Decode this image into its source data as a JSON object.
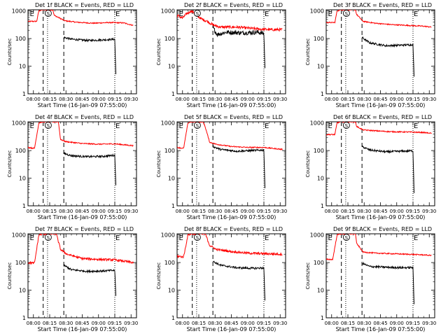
{
  "chart_data": {
    "type": "line",
    "layout": "3x3 grid",
    "common": {
      "xlabel": "Start Time (16-Jan-09 07:55:00)",
      "ylabel": "Counts/sec",
      "ytick_labels": [
        "1",
        "10",
        "100",
        "1000"
      ],
      "yscale": "log",
      "ylim": [
        1,
        1100
      ],
      "xtick_labels": [
        "08:00",
        "08:15",
        "08:30",
        "08:45",
        "09:00",
        "09:15",
        "09:30"
      ],
      "xtick_minutes": [
        5,
        20,
        35,
        50,
        65,
        80,
        95
      ],
      "xlim_minutes": [
        0,
        100
      ],
      "marker_E": "E",
      "marker_S": "S",
      "series_colors": {
        "events": "#000000",
        "lld": "#ff0000"
      }
    },
    "panels": [
      {
        "title": "Det 1f BLACK = Events, RED = LLD",
        "dashed_lines": [
          14,
          33
        ],
        "dotted_lines": [
          18,
          80
        ],
        "s_marker_at": 18,
        "e_markers": [
          1,
          80
        ],
        "lld": [
          [
            0,
            420
          ],
          [
            8,
            420
          ],
          [
            10,
            1000
          ],
          [
            13,
            1100
          ],
          [
            23,
            1100
          ],
          [
            24,
            700
          ],
          [
            34,
            440
          ],
          [
            45,
            390
          ],
          [
            60,
            360
          ],
          [
            75,
            380
          ],
          [
            88,
            370
          ],
          [
            97,
            300
          ]
        ],
        "events": [
          [
            33,
            110
          ],
          [
            40,
            95
          ],
          [
            55,
            85
          ],
          [
            70,
            90
          ],
          [
            80,
            95
          ],
          [
            81,
            5
          ]
        ]
      },
      {
        "title": "Det 2f BLACK = Events, RED = LLD",
        "dashed_lines": [
          14,
          33
        ],
        "dotted_lines": [
          18,
          80
        ],
        "s_marker_at": 18,
        "e_markers": [
          1,
          80
        ],
        "lld": [
          [
            0,
            700
          ],
          [
            5,
            550
          ],
          [
            9,
            800
          ],
          [
            13,
            1000
          ],
          [
            17,
            800
          ],
          [
            20,
            600
          ],
          [
            23,
            500
          ],
          [
            28,
            420
          ],
          [
            33,
            310
          ],
          [
            40,
            260
          ],
          [
            55,
            260
          ],
          [
            70,
            230
          ],
          [
            85,
            210
          ],
          [
            97,
            210
          ]
        ],
        "events": [
          [
            33,
            250
          ],
          [
            37,
            140
          ],
          [
            45,
            170
          ],
          [
            60,
            160
          ],
          [
            75,
            170
          ],
          [
            80,
            150
          ],
          [
            81,
            8
          ]
        ]
      },
      {
        "title": "Det 3f BLACK = Events, RED = LLD",
        "dashed_lines": [
          14,
          33
        ],
        "dotted_lines": [
          18,
          80
        ],
        "s_marker_at": 18,
        "e_markers": [
          1,
          80
        ],
        "lld": [
          [
            0,
            380
          ],
          [
            8,
            380
          ],
          [
            10,
            1000
          ],
          [
            13,
            1100
          ],
          [
            27,
            1100
          ],
          [
            28,
            750
          ],
          [
            34,
            420
          ],
          [
            45,
            360
          ],
          [
            60,
            320
          ],
          [
            75,
            300
          ],
          [
            90,
            280
          ],
          [
            97,
            260
          ]
        ],
        "events": [
          [
            33,
            110
          ],
          [
            40,
            70
          ],
          [
            55,
            55
          ],
          [
            70,
            58
          ],
          [
            80,
            60
          ],
          [
            81,
            4
          ]
        ]
      },
      {
        "title": "Det 4f BLACK = Events, RED = LLD",
        "dashed_lines": [
          14,
          33
        ],
        "dotted_lines": [
          18,
          80
        ],
        "s_marker_at": 18,
        "e_markers": [
          1,
          80
        ],
        "lld": [
          [
            0,
            130
          ],
          [
            6,
            120
          ],
          [
            10,
            1000
          ],
          [
            13,
            1100
          ],
          [
            28,
            1100
          ],
          [
            30,
            250
          ],
          [
            35,
            210
          ],
          [
            50,
            180
          ],
          [
            65,
            170
          ],
          [
            80,
            175
          ],
          [
            97,
            150
          ]
        ],
        "events": [
          [
            33,
            80
          ],
          [
            40,
            65
          ],
          [
            55,
            60
          ],
          [
            70,
            62
          ],
          [
            80,
            68
          ],
          [
            81,
            6
          ]
        ]
      },
      {
        "title": "Det 5f BLACK = Events, RED = LLD",
        "dashed_lines": [
          14,
          33
        ],
        "dotted_lines": [
          18,
          80
        ],
        "s_marker_at": 18,
        "e_markers": [
          1,
          80
        ],
        "lld": [
          [
            0,
            130
          ],
          [
            6,
            120
          ],
          [
            10,
            1000
          ],
          [
            13,
            1100
          ],
          [
            24,
            1100
          ],
          [
            26,
            700
          ],
          [
            30,
            200
          ],
          [
            36,
            170
          ],
          [
            50,
            140
          ],
          [
            65,
            130
          ],
          [
            80,
            130
          ],
          [
            97,
            110
          ]
        ],
        "events": [
          [
            33,
            140
          ],
          [
            40,
            110
          ],
          [
            55,
            95
          ],
          [
            70,
            100
          ],
          [
            80,
            105
          ],
          [
            81,
            4
          ]
        ]
      },
      {
        "title": "Det 6f BLACK = Events, RED = LLD",
        "dashed_lines": [
          14,
          33
        ],
        "dotted_lines": [
          18,
          80
        ],
        "s_marker_at": 18,
        "e_markers": [
          1,
          80
        ],
        "lld": [
          [
            0,
            380
          ],
          [
            8,
            380
          ],
          [
            10,
            1000
          ],
          [
            13,
            1100
          ],
          [
            27,
            1100
          ],
          [
            28,
            750
          ],
          [
            34,
            560
          ],
          [
            45,
            520
          ],
          [
            60,
            480
          ],
          [
            75,
            470
          ],
          [
            90,
            450
          ],
          [
            97,
            420
          ]
        ],
        "events": [
          [
            33,
            140
          ],
          [
            40,
            105
          ],
          [
            55,
            90
          ],
          [
            70,
            95
          ],
          [
            80,
            98
          ],
          [
            81,
            3
          ]
        ]
      },
      {
        "title": "Det 7f BLACK = Events, RED = LLD",
        "dashed_lines": [
          14,
          33
        ],
        "dotted_lines": [
          18,
          80
        ],
        "s_marker_at": 18,
        "e_markers": [
          1,
          80
        ],
        "lld": [
          [
            0,
            100
          ],
          [
            6,
            95
          ],
          [
            10,
            1000
          ],
          [
            13,
            1100
          ],
          [
            26,
            1100
          ],
          [
            30,
            300
          ],
          [
            36,
            200
          ],
          [
            50,
            140
          ],
          [
            65,
            130
          ],
          [
            80,
            125
          ],
          [
            97,
            100
          ]
        ],
        "events": [
          [
            33,
            80
          ],
          [
            40,
            55
          ],
          [
            55,
            48
          ],
          [
            70,
            50
          ],
          [
            80,
            52
          ],
          [
            81,
            6
          ]
        ]
      },
      {
        "title": "Det 8f BLACK = Events, RED = LLD",
        "dashed_lines": [
          14,
          33
        ],
        "dotted_lines": [
          18,
          80
        ],
        "s_marker_at": 18,
        "e_markers": [
          1,
          80
        ],
        "lld": [
          [
            0,
            170
          ],
          [
            6,
            160
          ],
          [
            10,
            1000
          ],
          [
            13,
            1100
          ],
          [
            26,
            1100
          ],
          [
            30,
            420
          ],
          [
            36,
            300
          ],
          [
            50,
            250
          ],
          [
            65,
            220
          ],
          [
            80,
            210
          ],
          [
            97,
            200
          ]
        ],
        "events": [
          [
            33,
            110
          ],
          [
            40,
            80
          ],
          [
            55,
            65
          ],
          [
            70,
            62
          ],
          [
            80,
            64
          ],
          [
            81,
            4
          ]
        ]
      },
      {
        "title": "Det 9f BLACK = Events, RED = LLD",
        "dashed_lines": [
          14,
          33
        ],
        "dotted_lines": [
          18,
          80
        ],
        "s_marker_at": 18,
        "e_markers": [
          1,
          80
        ],
        "lld": [
          [
            0,
            130
          ],
          [
            6,
            130
          ],
          [
            10,
            1000
          ],
          [
            13,
            1100
          ],
          [
            27,
            1100
          ],
          [
            28,
            500
          ],
          [
            34,
            240
          ],
          [
            45,
            220
          ],
          [
            60,
            210
          ],
          [
            75,
            200
          ],
          [
            90,
            190
          ],
          [
            97,
            180
          ]
        ],
        "events": [
          [
            33,
            95
          ],
          [
            40,
            72
          ],
          [
            55,
            68
          ],
          [
            70,
            65
          ],
          [
            80,
            66
          ],
          [
            81,
            3
          ]
        ]
      }
    ]
  }
}
